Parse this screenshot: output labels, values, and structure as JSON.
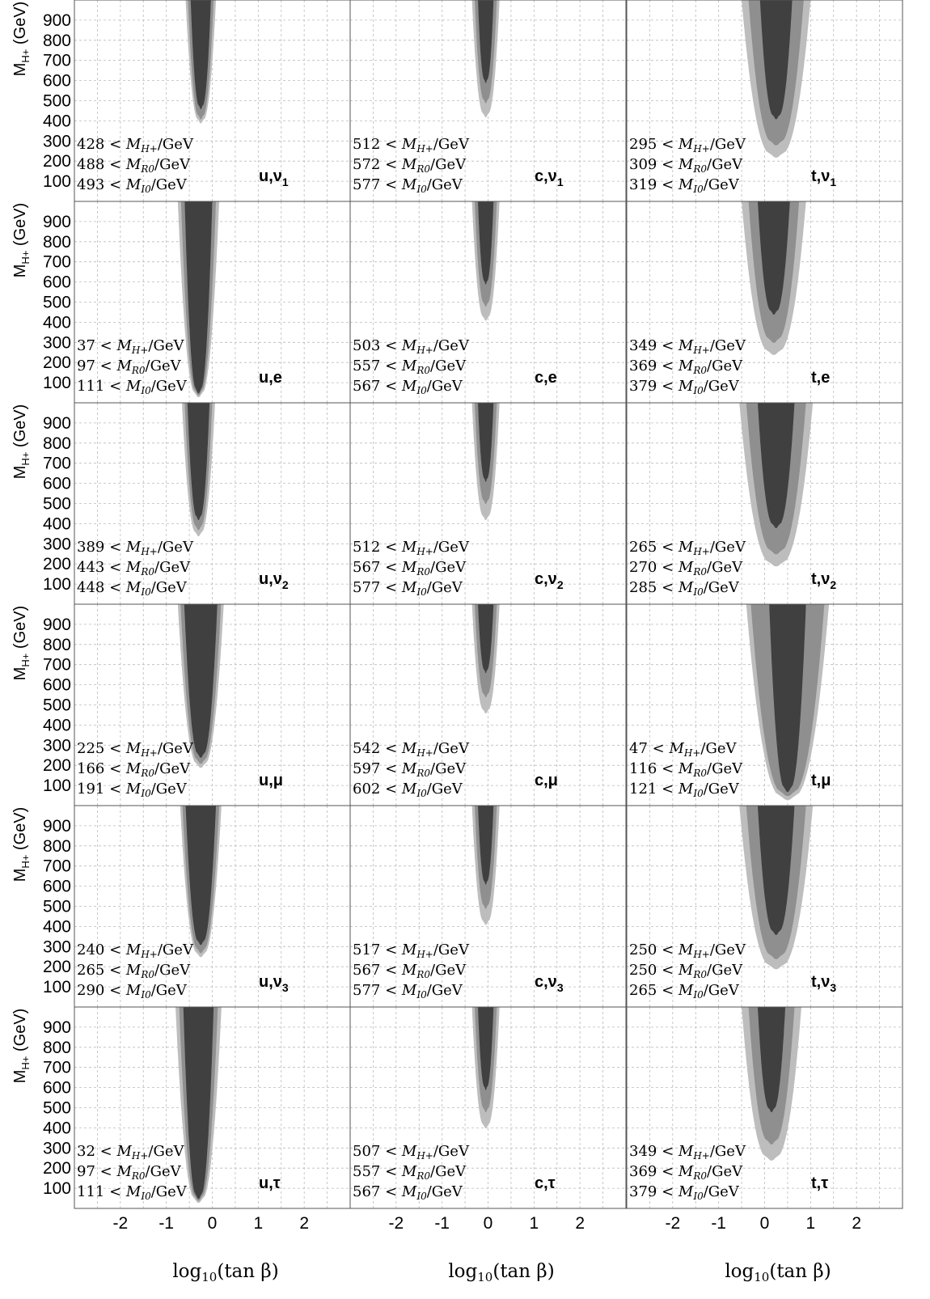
{
  "chart_data": {
    "type": "heatmap",
    "xlabel": "log10(tan β)",
    "ylabel": "MH+ (GeV)",
    "xlim": [
      -3,
      3
    ],
    "ylim": [
      0,
      1000
    ],
    "xticks": [
      -2,
      -1,
      0,
      1,
      2
    ],
    "yticks": [
      100,
      200,
      300,
      400,
      500,
      600,
      700,
      800,
      900
    ],
    "grid": true,
    "region_colors": [
      "#bdbdbd",
      "#8f8f8f",
      "#404040"
    ],
    "columns": [
      "u",
      "c",
      "t"
    ],
    "panels": [
      {
        "label": "u,ν1",
        "bounds": [
          [
            "428",
            "MH+"
          ],
          [
            "488",
            "MR0"
          ],
          [
            "493",
            "MI0"
          ]
        ],
        "regions": [
          {
            "c": -0.25,
            "hw": 0.33,
            "m": 400
          },
          {
            "c": -0.25,
            "hw": 0.28,
            "m": 420
          },
          {
            "c": -0.25,
            "hw": 0.22,
            "m": 470
          }
        ]
      },
      {
        "label": "c,ν1",
        "bounds": [
          [
            "512",
            "MH+"
          ],
          [
            "572",
            "MR0"
          ],
          [
            "577",
            "MI0"
          ]
        ],
        "regions": [
          {
            "c": -0.05,
            "hw": 0.3,
            "m": 430
          },
          {
            "c": -0.05,
            "hw": 0.24,
            "m": 500
          },
          {
            "c": -0.05,
            "hw": 0.17,
            "m": 600
          }
        ]
      },
      {
        "label": "t,ν1",
        "bounds": [
          [
            "295",
            "MH+"
          ],
          [
            "309",
            "MR0"
          ],
          [
            "319",
            "MI0"
          ]
        ],
        "regions": [
          {
            "c": 0.25,
            "hw": 0.75,
            "m": 230
          },
          {
            "c": 0.25,
            "hw": 0.6,
            "m": 290
          },
          {
            "c": 0.25,
            "hw": 0.35,
            "m": 420
          }
        ]
      },
      {
        "label": "u,e",
        "bounds": [
          [
            "37",
            "MH+"
          ],
          [
            "97",
            "MR0"
          ],
          [
            "111",
            "MI0"
          ]
        ],
        "regions": [
          {
            "c": -0.3,
            "hw": 0.45,
            "m": 40
          },
          {
            "c": -0.3,
            "hw": 0.38,
            "m": 50
          },
          {
            "c": -0.3,
            "hw": 0.3,
            "m": 60
          }
        ]
      },
      {
        "label": "c,e",
        "bounds": [
          [
            "503",
            "MH+"
          ],
          [
            "557",
            "MR0"
          ],
          [
            "567",
            "MI0"
          ]
        ],
        "regions": [
          {
            "c": -0.05,
            "hw": 0.3,
            "m": 420
          },
          {
            "c": -0.05,
            "hw": 0.24,
            "m": 490
          },
          {
            "c": -0.05,
            "hw": 0.17,
            "m": 600
          }
        ]
      },
      {
        "label": "t,e",
        "bounds": [
          [
            "349",
            "MH+"
          ],
          [
            "369",
            "MR0"
          ],
          [
            "379",
            "MI0"
          ]
        ],
        "regions": [
          {
            "c": 0.2,
            "hw": 0.7,
            "m": 250
          },
          {
            "c": 0.2,
            "hw": 0.55,
            "m": 310
          },
          {
            "c": 0.2,
            "hw": 0.35,
            "m": 450
          }
        ]
      },
      {
        "label": "u,ν2",
        "bounds": [
          [
            "389",
            "MH+"
          ],
          [
            "443",
            "MR0"
          ],
          [
            "448",
            "MI0"
          ]
        ],
        "regions": [
          {
            "c": -0.3,
            "hw": 0.36,
            "m": 350
          },
          {
            "c": -0.3,
            "hw": 0.3,
            "m": 380
          },
          {
            "c": -0.3,
            "hw": 0.24,
            "m": 430
          }
        ]
      },
      {
        "label": "c,ν2",
        "bounds": [
          [
            "512",
            "MH+"
          ],
          [
            "567",
            "MR0"
          ],
          [
            "577",
            "MI0"
          ]
        ],
        "regions": [
          {
            "c": -0.05,
            "hw": 0.3,
            "m": 430
          },
          {
            "c": -0.05,
            "hw": 0.24,
            "m": 510
          },
          {
            "c": -0.05,
            "hw": 0.17,
            "m": 620
          }
        ]
      },
      {
        "label": "t,ν2",
        "bounds": [
          [
            "265",
            "MH+"
          ],
          [
            "270",
            "MR0"
          ],
          [
            "285",
            "MI0"
          ]
        ],
        "regions": [
          {
            "c": 0.25,
            "hw": 0.8,
            "m": 200
          },
          {
            "c": 0.25,
            "hw": 0.65,
            "m": 260
          },
          {
            "c": 0.25,
            "hw": 0.4,
            "m": 390
          }
        ]
      },
      {
        "label": "u,μ",
        "bounds": [
          [
            "225",
            "MH+"
          ],
          [
            "166",
            "MR0"
          ],
          [
            "191",
            "MI0"
          ]
        ],
        "regions": [
          {
            "c": -0.25,
            "hw": 0.5,
            "m": 200
          },
          {
            "c": -0.25,
            "hw": 0.44,
            "m": 220
          },
          {
            "c": -0.25,
            "hw": 0.36,
            "m": 250
          }
        ]
      },
      {
        "label": "c,μ",
        "bounds": [
          [
            "542",
            "MH+"
          ],
          [
            "597",
            "MR0"
          ],
          [
            "602",
            "MI0"
          ]
        ],
        "regions": [
          {
            "c": -0.05,
            "hw": 0.3,
            "m": 470
          },
          {
            "c": -0.05,
            "hw": 0.24,
            "m": 550
          },
          {
            "c": -0.05,
            "hw": 0.17,
            "m": 670
          }
        ]
      },
      {
        "label": "t,μ",
        "bounds": [
          [
            "47",
            "MH+"
          ],
          [
            "116",
            "MR0"
          ],
          [
            "121",
            "MI0"
          ]
        ],
        "regions": [
          {
            "c": 0.5,
            "hw": 0.9,
            "m": 40
          },
          {
            "c": 0.5,
            "hw": 0.8,
            "m": 60
          },
          {
            "c": 0.5,
            "hw": 0.4,
            "m": 80
          }
        ]
      },
      {
        "label": "u,ν3",
        "bounds": [
          [
            "240",
            "MH+"
          ],
          [
            "265",
            "MR0"
          ],
          [
            "290",
            "MI0"
          ]
        ],
        "regions": [
          {
            "c": -0.25,
            "hw": 0.45,
            "m": 260
          },
          {
            "c": -0.25,
            "hw": 0.4,
            "m": 280
          },
          {
            "c": -0.25,
            "hw": 0.33,
            "m": 320
          }
        ]
      },
      {
        "label": "c,ν3",
        "bounds": [
          [
            "517",
            "MH+"
          ],
          [
            "567",
            "MR0"
          ],
          [
            "577",
            "MI0"
          ]
        ],
        "regions": [
          {
            "c": -0.05,
            "hw": 0.3,
            "m": 420
          },
          {
            "c": -0.05,
            "hw": 0.24,
            "m": 500
          },
          {
            "c": -0.05,
            "hw": 0.17,
            "m": 620
          }
        ]
      },
      {
        "label": "t,ν3",
        "bounds": [
          [
            "250",
            "MH+"
          ],
          [
            "250",
            "MR0"
          ],
          [
            "265",
            "MI0"
          ]
        ],
        "regions": [
          {
            "c": 0.25,
            "hw": 0.8,
            "m": 200
          },
          {
            "c": 0.25,
            "hw": 0.65,
            "m": 250
          },
          {
            "c": 0.25,
            "hw": 0.4,
            "m": 370
          }
        ]
      },
      {
        "label": "u,τ",
        "bounds": [
          [
            "32",
            "MH+"
          ],
          [
            "97",
            "MR0"
          ],
          [
            "111",
            "MI0"
          ]
        ],
        "regions": [
          {
            "c": -0.3,
            "hw": 0.5,
            "m": 40
          },
          {
            "c": -0.3,
            "hw": 0.42,
            "m": 50
          },
          {
            "c": -0.3,
            "hw": 0.33,
            "m": 60
          }
        ]
      },
      {
        "label": "c,τ",
        "bounds": [
          [
            "507",
            "MH+"
          ],
          [
            "557",
            "MR0"
          ],
          [
            "567",
            "MI0"
          ]
        ],
        "regions": [
          {
            "c": -0.05,
            "hw": 0.3,
            "m": 410
          },
          {
            "c": -0.05,
            "hw": 0.24,
            "m": 490
          },
          {
            "c": -0.05,
            "hw": 0.17,
            "m": 600
          }
        ]
      },
      {
        "label": "t,τ",
        "bounds": [
          [
            "349",
            "MH+"
          ],
          [
            "369",
            "MR0"
          ],
          [
            "379",
            "MI0"
          ]
        ],
        "regions": [
          {
            "c": 0.15,
            "hw": 0.65,
            "m": 250
          },
          {
            "c": 0.15,
            "hw": 0.5,
            "m": 330
          },
          {
            "c": 0.15,
            "hw": 0.3,
            "m": 490
          }
        ]
      }
    ]
  }
}
